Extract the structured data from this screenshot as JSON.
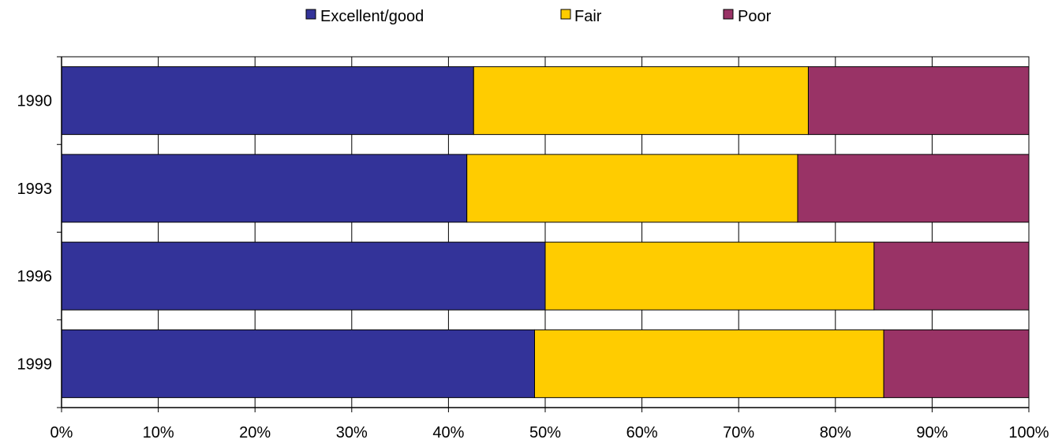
{
  "chart_data": {
    "type": "bar",
    "orientation": "horizontal",
    "stacked": "percent",
    "categories": [
      "1990",
      "1993",
      "1996",
      "1999"
    ],
    "series": [
      {
        "name": "Excellent/good",
        "color": "#333399",
        "values": [
          42.6,
          41.9,
          50.0,
          48.9
        ]
      },
      {
        "name": "Fair",
        "color": "#FFCC00",
        "values": [
          34.6,
          34.2,
          34.0,
          36.1
        ]
      },
      {
        "name": "Poor",
        "color": "#993366",
        "values": [
          22.8,
          23.9,
          16.0,
          15.0
        ]
      }
    ],
    "xlim": [
      0,
      100
    ],
    "x_ticks": [
      "0%",
      "10%",
      "20%",
      "30%",
      "40%",
      "50%",
      "60%",
      "70%",
      "80%",
      "90%",
      "100%"
    ],
    "grid": true,
    "legend_position": "top"
  }
}
